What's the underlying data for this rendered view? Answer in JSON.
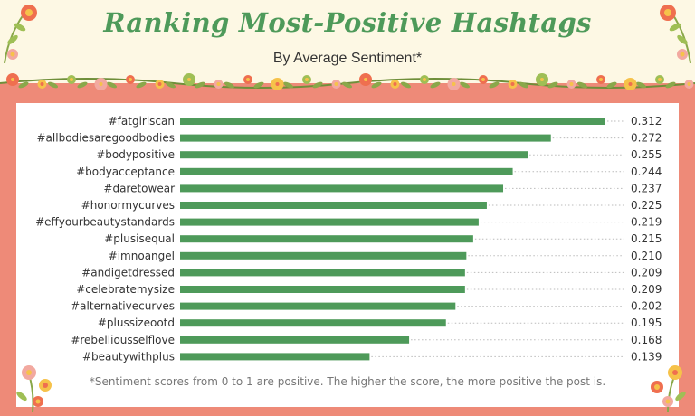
{
  "header": {
    "title": "Ranking Most-Positive Hashtags",
    "subtitle": "By Average Sentiment*"
  },
  "footnote": "*Sentiment scores from 0 to 1 are positive. The higher the score, the more positive the post is.",
  "colors": {
    "bar": "#4e9a5a",
    "frame": "#ee8a78",
    "background": "#fdf8e4",
    "title": "#4e9a5a"
  },
  "chart_data": {
    "type": "bar",
    "orientation": "horizontal",
    "title": "Ranking Most-Positive Hashtags",
    "subtitle": "By Average Sentiment*",
    "categories": [
      "#fatgirlscan",
      "#allbodiesaregoodbodies",
      "#bodypositive",
      "#bodyacceptance",
      "#daretowear",
      "#honormycurves",
      "#effyourbeautystandards",
      "#plusisequal",
      "#imnoangel",
      "#andigetdressed",
      "#celebratemysize",
      "#alternativecurves",
      "#plussizeootd",
      "#rebelliousselflove",
      "#beautywithplus"
    ],
    "values": [
      0.312,
      0.272,
      0.255,
      0.244,
      0.237,
      0.225,
      0.219,
      0.215,
      0.21,
      0.209,
      0.209,
      0.202,
      0.195,
      0.168,
      0.139
    ],
    "value_labels": [
      "0.312",
      "0.272",
      "0.255",
      "0.244",
      "0.237",
      "0.225",
      "0.219",
      "0.215",
      "0.210",
      "0.209",
      "0.209",
      "0.202",
      "0.195",
      "0.168",
      "0.139"
    ],
    "xlim": [
      0,
      0.312
    ],
    "grid": false,
    "legend": "none"
  }
}
